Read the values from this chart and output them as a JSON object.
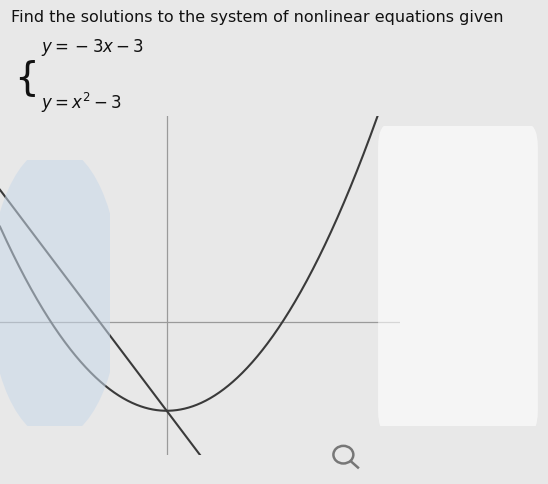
{
  "title_line1": "Find the solutions to the system of nonlinear equations given",
  "background_color": "#e8e8e8",
  "graph_bg_color": "#e0e0e0",
  "line_color": "#3a3a3a",
  "axis_color": "#9a9a9a",
  "x_range": [
    -2.5,
    3.5
  ],
  "y_range": [
    -4.5,
    7.0
  ],
  "title_fontsize": 11.5,
  "eq_fontsize": 12
}
